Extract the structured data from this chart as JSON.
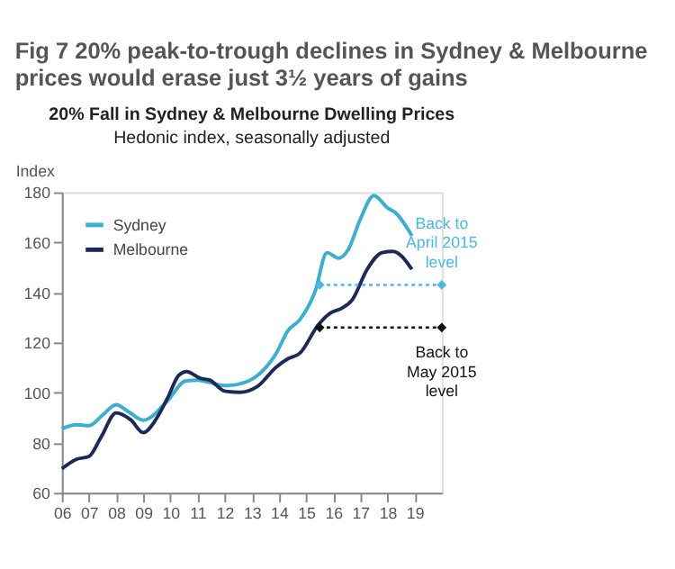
{
  "chart_data": {
    "type": "line",
    "title": "20% Fall in Sydney & Melbourne Dwelling Prices",
    "subtitle": "Hedonic index, seasonally adjusted",
    "ylabel": "Index",
    "annotations": [
      "Fig 7    20% peak-to-trough declines in Sydney & Melbourne\nprices would erase just 3½ years of gains",
      {
        "text": "Back to\nApril 2015\nlevel",
        "x": 2020,
        "y": 143
      },
      {
        "text": "Back to\nMay 2015\nlevel",
        "x": 2020,
        "y": 126
      }
    ],
    "series": [
      {
        "name": "Sydney",
        "color": "#3aafcf",
        "x": [
          2006,
          2006.55,
          2007,
          2007.5,
          2008,
          2008.5,
          2009,
          2009.9,
          2010.55,
          2011,
          2012,
          2012.55,
          2013.2,
          2013.9,
          2014.33,
          2014.77,
          2015.33,
          2015.77,
          2016.2,
          2016.55,
          2017,
          2017.5,
          2018,
          2018.33,
          2018.9
        ],
        "values": [
          85.6,
          87.2,
          86.8,
          91,
          95.2,
          92,
          89,
          96.8,
          104.6,
          105,
          102.8,
          103.5,
          106.8,
          115.7,
          124.7,
          129.1,
          140.3,
          155.9,
          153.7,
          157,
          169.3,
          178.7,
          173.8,
          171.5,
          162.6
        ]
      },
      {
        "name": "Melbourne",
        "color": "#1b2a5a",
        "x": [
          2006,
          2006.55,
          2007,
          2007.45,
          2008,
          2008.55,
          2009,
          2009.45,
          2009.9,
          2010.3,
          2010.6,
          2011.1,
          2011.45,
          2012,
          2012.55,
          2013.2,
          2013.9,
          2014.33,
          2014.77,
          2015.44,
          2015.9,
          2016.3,
          2016.7,
          2017.25,
          2017.8,
          2018.2,
          2018.9
        ],
        "values": [
          69.6,
          73.4,
          74.5,
          82.3,
          91.9,
          89,
          84,
          89,
          97.9,
          106.8,
          108.4,
          105.7,
          105,
          100.6,
          100.1,
          102.4,
          110.2,
          113.5,
          115.7,
          126.9,
          131.8,
          133.6,
          137,
          149.2,
          155.9,
          156.4,
          149.2
        ]
      },
      {
        "type": "line",
        "color": "#4bb8e2",
        "line_style": "dotted",
        "marker": "diamond",
        "x": [
          2015.5,
          2020
        ],
        "values": [
          143,
          143
        ]
      },
      {
        "type": "line",
        "color": "#111111",
        "line_style": "dotted",
        "marker": "diamond",
        "x": [
          2015.5,
          2020
        ],
        "values": [
          126,
          126
        ]
      }
    ],
    "xlim": [
      2006,
      2020
    ],
    "xticks": [
      {
        "value": 2006,
        "label": "06"
      },
      {
        "value": 2007,
        "label": "07"
      },
      {
        "value": 2008,
        "label": "08"
      },
      {
        "value": 2009,
        "label": "09"
      },
      {
        "value": 2010,
        "label": "10"
      },
      {
        "value": 2011,
        "label": "11"
      },
      {
        "value": 2012,
        "label": "12"
      },
      {
        "value": 2013,
        "label": "13"
      },
      {
        "value": 2014,
        "label": "14"
      },
      {
        "value": 2015,
        "label": "15"
      },
      {
        "value": 2016,
        "label": "16"
      },
      {
        "value": 2017,
        "label": "17"
      },
      {
        "value": 2018,
        "label": "18"
      },
      {
        "value": 2019,
        "label": "19"
      }
    ],
    "ylim": [
      60,
      180
    ],
    "yticks": [
      60,
      80,
      100,
      120,
      140,
      160,
      180
    ],
    "grid": false,
    "legend": "top left",
    "line_style": "solid",
    "marker": "none"
  }
}
